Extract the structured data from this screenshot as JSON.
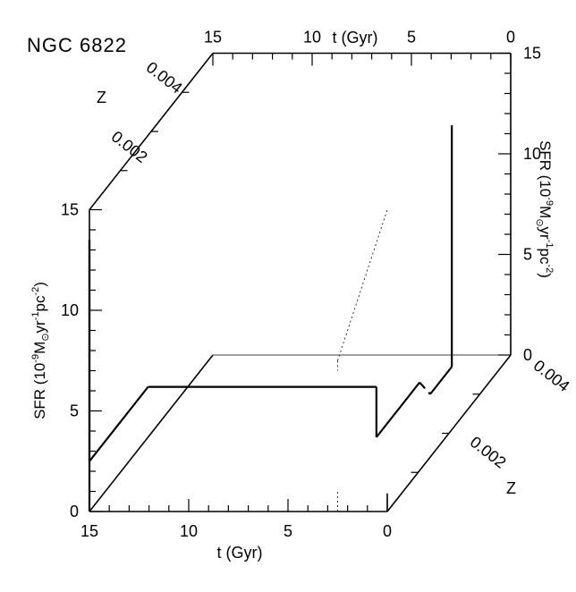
{
  "chart_data": {
    "type": "line",
    "title": "NGC 6822",
    "xlabel": "t (Gyr)",
    "ylabel": "SFR (10^-9 M⊙ yr^-1 pc^-2)",
    "zlabel": "Z",
    "xlim": [
      15,
      0
    ],
    "ylim": [
      0,
      15
    ],
    "zlim": [
      0,
      0.004
    ],
    "x_ticks": [
      "15",
      "10",
      "5",
      "0"
    ],
    "y_ticks": [
      "0",
      "5",
      "10",
      "15"
    ],
    "z_ticks": [
      "0.002",
      "0.004"
    ],
    "top_x_ticks": [
      "15",
      "10",
      "5",
      "0"
    ],
    "right_y_ticks": [
      "0",
      "5",
      "10",
      "15"
    ],
    "series": [
      {
        "style": "solid",
        "points": [
          {
            "t": 15.0,
            "sfr": 0.0,
            "z": 0.0
          },
          {
            "t": 15.0,
            "sfr": 13.5,
            "z": 0.0
          },
          {
            "t": 15.0,
            "sfr": 2.5,
            "z": 0.0
          },
          {
            "t": 15.0,
            "sfr": 2.5,
            "z": 0.0019
          },
          {
            "t": 3.5,
            "sfr": 2.5,
            "z": 0.0019
          },
          {
            "t": 3.5,
            "sfr": 0.0,
            "z": 0.0019
          },
          {
            "t": 3.5,
            "sfr": 0.0,
            "z": 0.0033
          }
        ]
      },
      {
        "style": "dashed",
        "points": [
          {
            "t": 3.5,
            "sfr": 0.0,
            "z": 0.0033
          },
          {
            "t": 2.5,
            "sfr": 0.0,
            "z": 0.003
          }
        ]
      },
      {
        "style": "solid",
        "points": [
          {
            "t": 2.5,
            "sfr": 0.0,
            "z": 0.003
          },
          {
            "t": 2.5,
            "sfr": 0.0,
            "z": 0.0037
          },
          {
            "t": 2.5,
            "sfr": 12.0,
            "z": 0.0037
          }
        ]
      }
    ],
    "projections": [
      {
        "style": "dotted",
        "points": [
          {
            "t": 2.5,
            "sfr": 7.5,
            "z": 0.0
          },
          {
            "t": 0.0,
            "sfr": 15.0,
            "z": 0.0
          }
        ]
      },
      {
        "style": "dotted",
        "points": [
          {
            "t": 2.5,
            "sfr": 7.5,
            "z": 0.0
          },
          {
            "t": 2.5,
            "sfr": 7.0,
            "z": 0.0
          }
        ]
      },
      {
        "style": "dotted",
        "points": [
          {
            "t": 2.5,
            "sfr": 0.0,
            "z": 0.0
          },
          {
            "t": 2.5,
            "sfr": 1.0,
            "z": 0.0
          }
        ]
      }
    ],
    "grid": false
  }
}
